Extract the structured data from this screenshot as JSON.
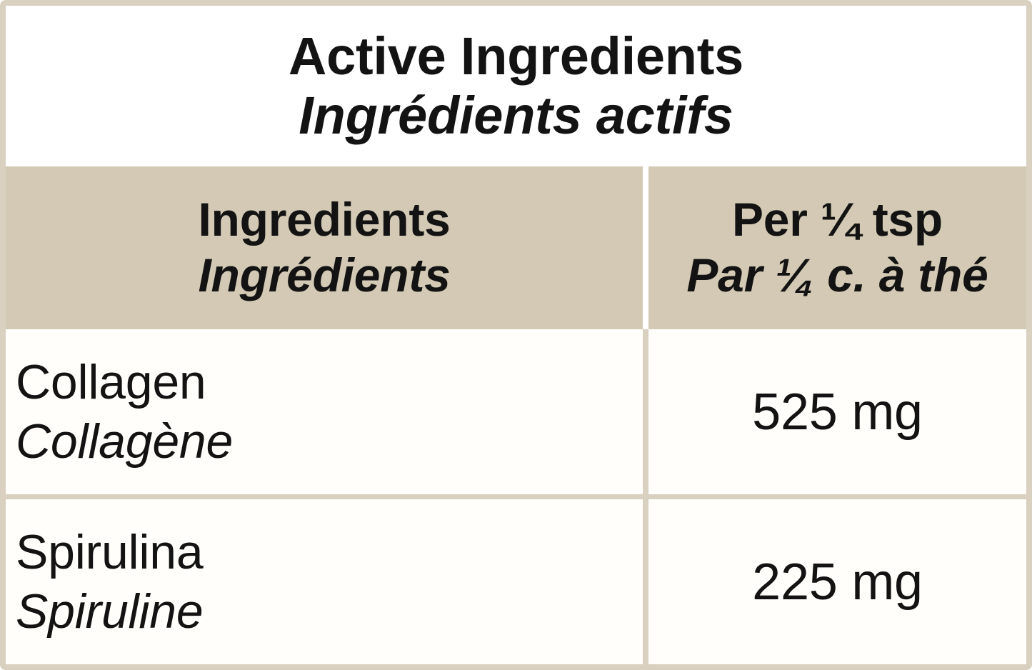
{
  "colors": {
    "header_bg": "#d3c9b4",
    "border_beige": "#d9d0c0",
    "text": "#131313",
    "cell_bg": "#fffefb"
  },
  "table": {
    "title": {
      "en": "Active Ingredients",
      "fr": "Ingrédients actifs"
    },
    "columns": {
      "ingredients": {
        "en": "Ingredients",
        "fr": "Ingrédients"
      },
      "per_serving": {
        "en": "Per ¼ tsp",
        "fr": "Par ¼ c. à thé"
      }
    },
    "rows": [
      {
        "en": "Collagen",
        "fr": "Collagène",
        "amount": "525 mg"
      },
      {
        "en": "Spirulina",
        "fr": "Spiruline",
        "amount": "225 mg"
      }
    ]
  }
}
